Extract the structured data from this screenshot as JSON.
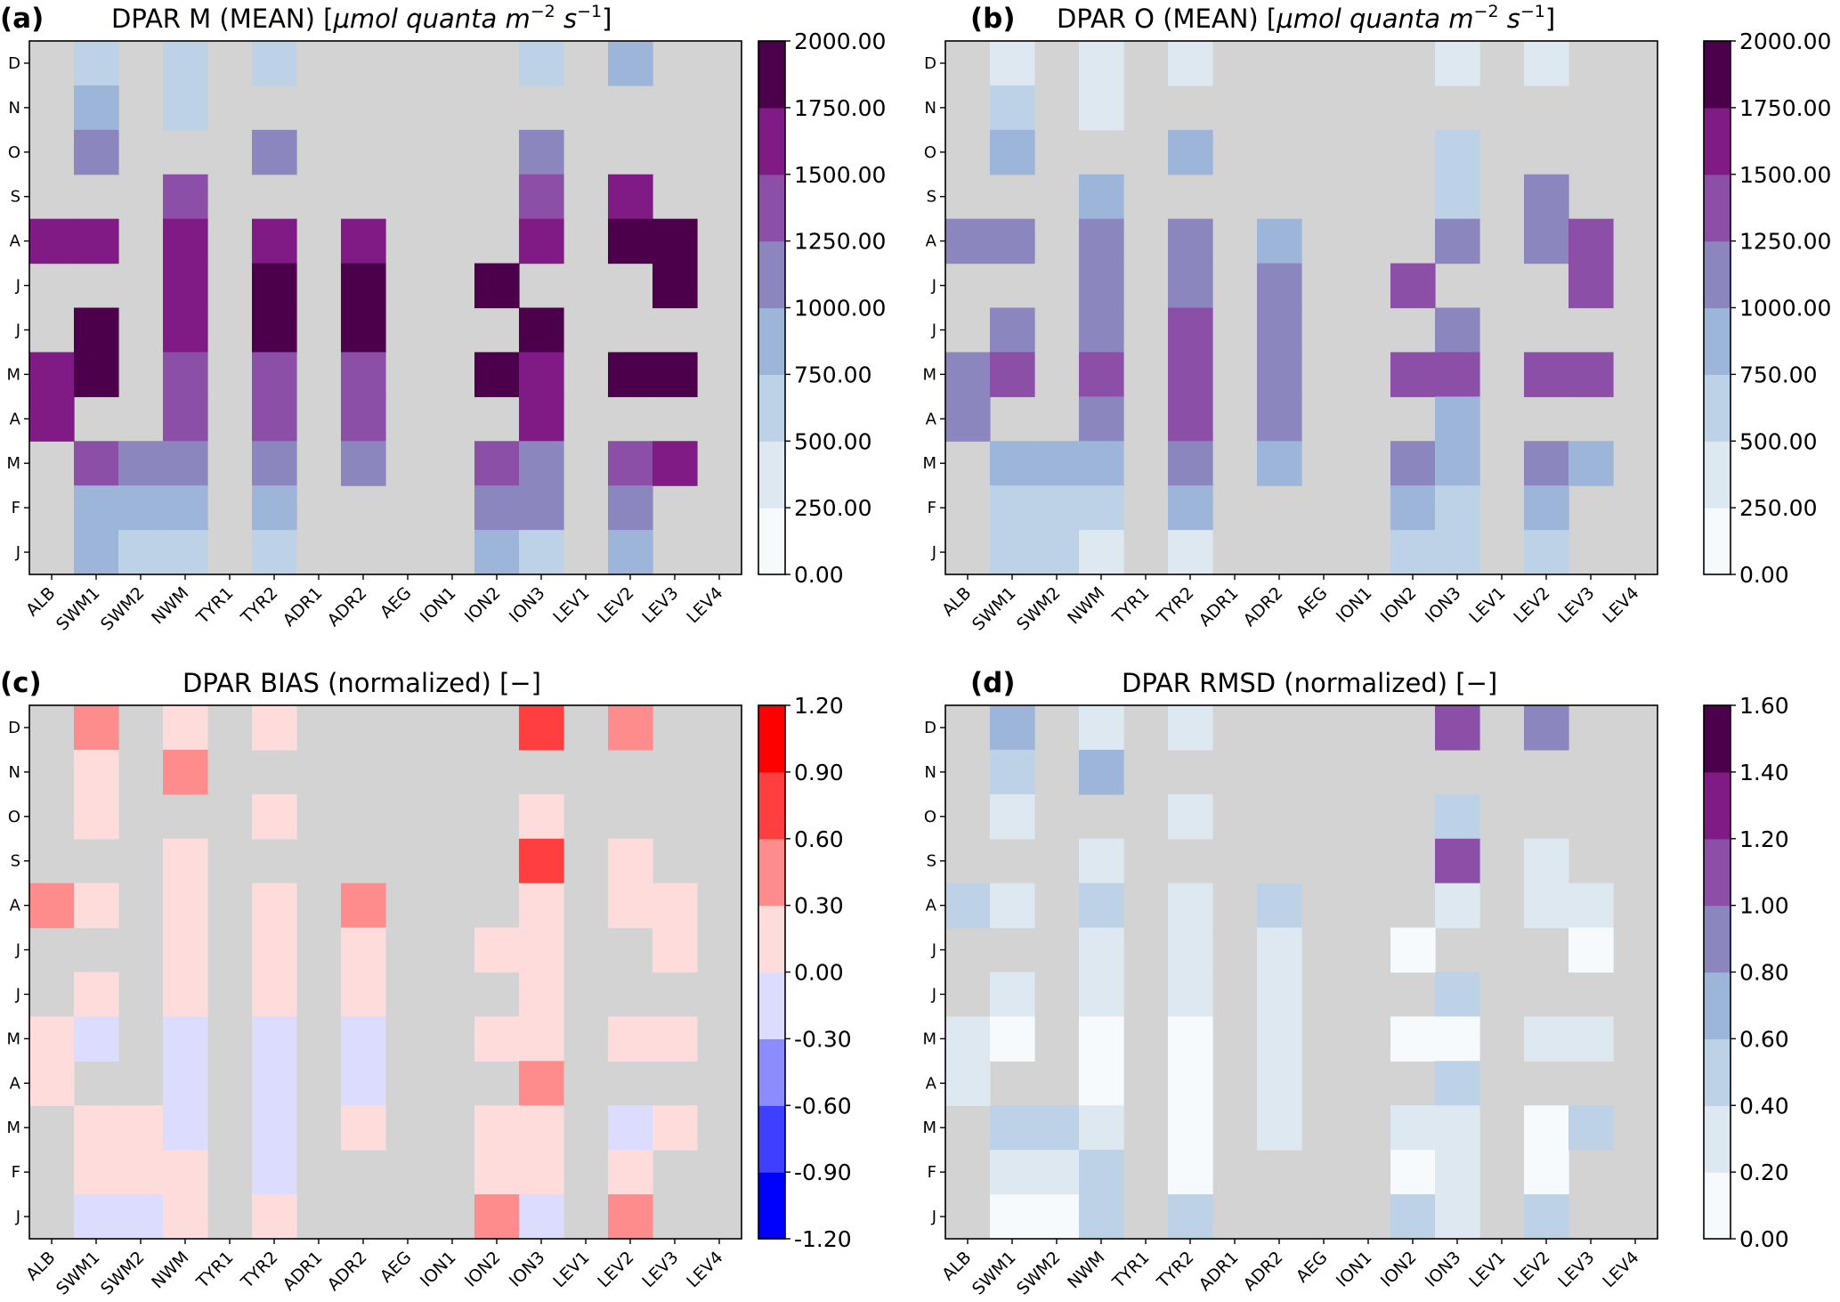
{
  "figure": {
    "x_categories": [
      "ALB",
      "SWM1",
      "SWM2",
      "NWM",
      "TYR1",
      "TYR2",
      "ADR1",
      "ADR2",
      "AEG",
      "ION1",
      "ION2",
      "ION3",
      "LEV1",
      "LEV2",
      "LEV3",
      "LEV4"
    ],
    "y_categories": [
      "D",
      "N",
      "O",
      "S",
      "A",
      "J",
      "J",
      "M",
      "A",
      "M",
      "F",
      "J"
    ],
    "missing_color": "#d3d3d3"
  },
  "chart_data": [
    {
      "type": "heatmap",
      "panel_label": "(a)",
      "title": "DPAR M (MEAN) [μmol quanta m⁻² s⁻¹]",
      "title_plain": "DPAR M (MEAN) [",
      "title_italic": "μmol quanta m",
      "title_sup1": "−2",
      "title_italic2": " s",
      "title_sup2": "−1",
      "title_end": "]",
      "colorbar": {
        "ticks": [
          "2000.00",
          "1750.00",
          "1500.00",
          "1250.00",
          "1000.00",
          "750.00",
          "500.00",
          "250.00",
          "0.00"
        ],
        "colors": [
          "#f6fafc",
          "#dde8f1",
          "#bdd1e7",
          "#9db5d9",
          "#8c86be",
          "#8b4fa7",
          "#801a84",
          "#4c004b"
        ]
      },
      "values": [
        [
          null,
          3,
          null,
          3,
          null,
          3,
          null,
          null,
          null,
          null,
          null,
          3,
          null,
          4,
          null,
          null
        ],
        [
          null,
          4,
          null,
          3,
          null,
          null,
          null,
          null,
          null,
          null,
          null,
          null,
          null,
          null,
          null,
          null
        ],
        [
          null,
          5,
          null,
          null,
          null,
          5,
          null,
          null,
          null,
          null,
          null,
          5,
          null,
          null,
          null,
          null
        ],
        [
          null,
          null,
          null,
          6,
          null,
          null,
          null,
          null,
          null,
          null,
          null,
          6,
          null,
          7,
          null,
          null
        ],
        [
          7,
          7,
          null,
          7,
          null,
          7,
          null,
          7,
          null,
          null,
          null,
          7,
          null,
          8,
          8,
          null
        ],
        [
          null,
          null,
          null,
          7,
          null,
          8,
          null,
          8,
          null,
          null,
          8,
          null,
          null,
          null,
          8,
          null
        ],
        [
          null,
          8,
          null,
          7,
          null,
          8,
          null,
          8,
          null,
          null,
          null,
          8,
          null,
          null,
          null,
          null
        ],
        [
          7,
          8,
          null,
          6,
          null,
          6,
          null,
          6,
          null,
          null,
          8,
          7,
          null,
          8,
          8,
          null
        ],
        [
          7,
          null,
          null,
          6,
          null,
          6,
          null,
          6,
          null,
          null,
          null,
          7,
          null,
          null,
          null,
          null
        ],
        [
          null,
          6,
          5,
          5,
          null,
          5,
          null,
          5,
          null,
          null,
          6,
          5,
          null,
          6,
          7,
          null
        ],
        [
          null,
          4,
          4,
          4,
          null,
          4,
          null,
          null,
          null,
          null,
          5,
          5,
          null,
          5,
          null,
          null
        ],
        [
          null,
          4,
          3,
          3,
          null,
          3,
          null,
          null,
          null,
          null,
          4,
          3,
          null,
          4,
          null,
          null
        ]
      ]
    },
    {
      "type": "heatmap",
      "panel_label": "(b)",
      "title": "DPAR O (MEAN) [μmol quanta m⁻² s⁻¹]",
      "title_plain": "DPAR O (MEAN) [",
      "title_italic": "μmol quanta m",
      "title_sup1": "−2",
      "title_italic2": " s",
      "title_sup2": "−1",
      "title_end": "]",
      "colorbar": {
        "ticks": [
          "2000.00",
          "1750.00",
          "1500.00",
          "1250.00",
          "1000.00",
          "750.00",
          "500.00",
          "250.00",
          "0.00"
        ],
        "colors": [
          "#f6fafc",
          "#dde8f1",
          "#bdd1e7",
          "#9db5d9",
          "#8c86be",
          "#8b4fa7",
          "#801a84",
          "#4c004b"
        ]
      },
      "values": [
        [
          null,
          2,
          null,
          2,
          null,
          2,
          null,
          null,
          null,
          null,
          null,
          2,
          null,
          2,
          null,
          null
        ],
        [
          null,
          3,
          null,
          2,
          null,
          null,
          null,
          null,
          null,
          null,
          null,
          null,
          null,
          null,
          null,
          null
        ],
        [
          null,
          4,
          null,
          null,
          null,
          4,
          null,
          null,
          null,
          null,
          null,
          3,
          null,
          null,
          null,
          null
        ],
        [
          null,
          null,
          null,
          4,
          null,
          null,
          null,
          null,
          null,
          null,
          null,
          3,
          null,
          5,
          null,
          null
        ],
        [
          5,
          5,
          null,
          5,
          null,
          5,
          null,
          4,
          null,
          null,
          null,
          5,
          null,
          5,
          6,
          null
        ],
        [
          null,
          null,
          null,
          5,
          null,
          5,
          null,
          5,
          null,
          null,
          6,
          null,
          null,
          null,
          6,
          null
        ],
        [
          null,
          5,
          null,
          5,
          null,
          6,
          null,
          5,
          null,
          null,
          null,
          5,
          null,
          null,
          null,
          null
        ],
        [
          5,
          6,
          null,
          6,
          null,
          6,
          null,
          5,
          null,
          null,
          6,
          6,
          null,
          6,
          6,
          null
        ],
        [
          5,
          null,
          null,
          5,
          null,
          6,
          null,
          5,
          null,
          null,
          null,
          4,
          null,
          null,
          null,
          null
        ],
        [
          null,
          4,
          4,
          4,
          null,
          5,
          null,
          4,
          null,
          null,
          5,
          4,
          null,
          5,
          4,
          null
        ],
        [
          null,
          3,
          3,
          3,
          null,
          4,
          null,
          null,
          null,
          null,
          4,
          3,
          null,
          4,
          null,
          null
        ],
        [
          null,
          3,
          3,
          2,
          null,
          2,
          null,
          null,
          null,
          null,
          3,
          3,
          null,
          3,
          null,
          null
        ]
      ]
    },
    {
      "type": "heatmap",
      "panel_label": "(c)",
      "title": "DPAR BIAS (normalized) [−]",
      "title_plain": "DPAR BIAS (normalized) [−]",
      "title_italic": "",
      "title_sup1": "",
      "title_italic2": "",
      "title_sup2": "",
      "title_end": "",
      "colorbar": {
        "ticks": [
          "1.20",
          "0.90",
          "0.60",
          "0.30",
          "0.00",
          "-0.30",
          "-0.60",
          "-0.90",
          "-1.20"
        ],
        "colors": [
          "#0000ff",
          "#3f3fff",
          "#8c8cff",
          "#dcdcff",
          "#ffdcdc",
          "#ff8c8c",
          "#ff3f3f",
          "#ff0000"
        ]
      },
      "values": [
        [
          null,
          6,
          null,
          5,
          null,
          5,
          null,
          null,
          null,
          null,
          null,
          7,
          null,
          6,
          null,
          null
        ],
        [
          null,
          5,
          null,
          6,
          null,
          null,
          null,
          null,
          null,
          null,
          null,
          null,
          null,
          null,
          null,
          null
        ],
        [
          null,
          5,
          null,
          null,
          null,
          5,
          null,
          null,
          null,
          null,
          null,
          5,
          null,
          null,
          null,
          null
        ],
        [
          null,
          null,
          null,
          5,
          null,
          null,
          null,
          null,
          null,
          null,
          null,
          7,
          null,
          5,
          null,
          null
        ],
        [
          6,
          5,
          null,
          5,
          null,
          5,
          null,
          6,
          null,
          null,
          null,
          5,
          null,
          5,
          5,
          null
        ],
        [
          null,
          null,
          null,
          5,
          null,
          5,
          null,
          5,
          null,
          null,
          5,
          5,
          null,
          null,
          5,
          null
        ],
        [
          null,
          5,
          null,
          5,
          null,
          5,
          null,
          5,
          null,
          null,
          null,
          5,
          null,
          null,
          null,
          null
        ],
        [
          5,
          4,
          null,
          4,
          null,
          4,
          null,
          4,
          null,
          null,
          5,
          5,
          null,
          5,
          5,
          null
        ],
        [
          5,
          null,
          null,
          4,
          null,
          4,
          null,
          4,
          null,
          null,
          null,
          6,
          null,
          null,
          null,
          null
        ],
        [
          null,
          5,
          5,
          4,
          null,
          4,
          null,
          5,
          null,
          null,
          5,
          5,
          null,
          4,
          5,
          null
        ],
        [
          null,
          5,
          5,
          5,
          null,
          4,
          null,
          null,
          null,
          null,
          5,
          5,
          null,
          5,
          null,
          null
        ],
        [
          null,
          4,
          4,
          5,
          null,
          5,
          null,
          null,
          null,
          null,
          6,
          4,
          null,
          6,
          null,
          null
        ]
      ]
    },
    {
      "type": "heatmap",
      "panel_label": "(d)",
      "title": "DPAR RMSD (normalized) [−]",
      "title_plain": "DPAR RMSD (normalized) [−]",
      "title_italic": "",
      "title_sup1": "",
      "title_italic2": "",
      "title_sup2": "",
      "title_end": "",
      "colorbar": {
        "ticks": [
          "1.60",
          "1.40",
          "1.20",
          "1.00",
          "0.80",
          "0.60",
          "0.40",
          "0.20",
          "0.00"
        ],
        "colors": [
          "#f6fafc",
          "#dde8f1",
          "#bdd1e7",
          "#9db5d9",
          "#8c86be",
          "#8b4fa7",
          "#801a84",
          "#4c004b"
        ]
      },
      "values": [
        [
          null,
          4,
          null,
          2,
          null,
          2,
          null,
          null,
          null,
          null,
          null,
          6,
          null,
          5,
          null,
          null
        ],
        [
          null,
          3,
          null,
          4,
          null,
          null,
          null,
          null,
          null,
          null,
          null,
          null,
          null,
          null,
          null,
          null
        ],
        [
          null,
          2,
          null,
          null,
          null,
          2,
          null,
          null,
          null,
          null,
          null,
          3,
          null,
          null,
          null,
          null
        ],
        [
          null,
          null,
          null,
          2,
          null,
          null,
          null,
          null,
          null,
          null,
          null,
          6,
          null,
          2,
          null,
          null
        ],
        [
          3,
          2,
          null,
          3,
          null,
          2,
          null,
          3,
          null,
          null,
          null,
          2,
          null,
          2,
          2,
          null
        ],
        [
          null,
          null,
          null,
          2,
          null,
          2,
          null,
          2,
          null,
          null,
          1,
          null,
          null,
          null,
          1,
          null
        ],
        [
          null,
          2,
          null,
          2,
          null,
          2,
          null,
          2,
          null,
          null,
          null,
          3,
          null,
          null,
          null,
          null
        ],
        [
          2,
          1,
          null,
          1,
          null,
          1,
          null,
          2,
          null,
          null,
          1,
          1,
          null,
          2,
          2,
          null
        ],
        [
          2,
          null,
          null,
          1,
          null,
          1,
          null,
          2,
          null,
          null,
          null,
          3,
          null,
          null,
          null,
          null
        ],
        [
          null,
          3,
          3,
          2,
          null,
          1,
          null,
          2,
          null,
          null,
          2,
          2,
          null,
          1,
          3,
          null
        ],
        [
          null,
          2,
          2,
          3,
          null,
          1,
          null,
          null,
          null,
          null,
          1,
          2,
          null,
          1,
          null,
          null
        ],
        [
          null,
          1,
          1,
          3,
          null,
          3,
          null,
          null,
          null,
          null,
          3,
          2,
          null,
          3,
          null,
          null
        ]
      ]
    }
  ]
}
